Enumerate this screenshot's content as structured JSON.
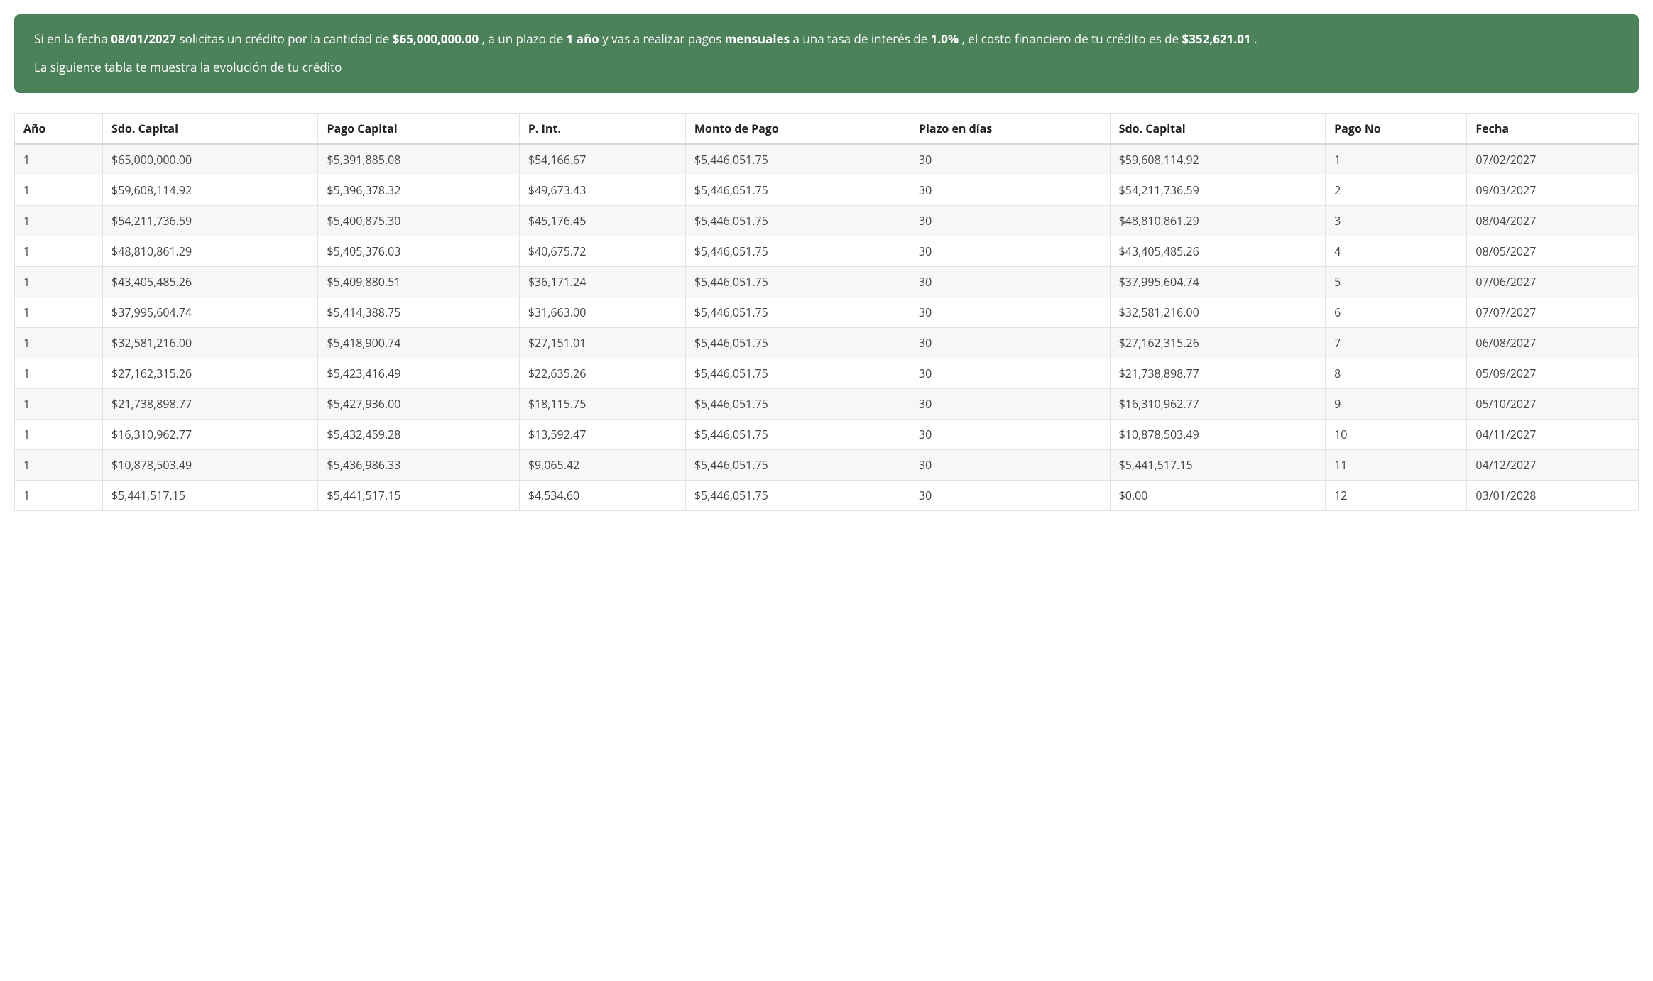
{
  "summary": {
    "text_pre_date": "Si en la fecha ",
    "date": "08/01/2027",
    "text_post_date": " solicitas un crédito por la cantidad de ",
    "amount": "$65,000,000.00",
    "text_post_amount": " , a un plazo de ",
    "term": "1 año",
    "text_post_term": " y vas a realizar pagos ",
    "frequency": "mensuales",
    "text_post_frequency": " a una tasa de interés de ",
    "rate": "1.0%",
    "text_post_rate": " , el costo financiero de tu crédito es de ",
    "cost": "$352,621.01",
    "text_post_cost": " .",
    "line2": "La siguiente tabla te muestra la evolución de tu crédito"
  },
  "table": {
    "headers": [
      "Año",
      "Sdo. Capital",
      "Pago Capital",
      "P. Int.",
      "Monto de Pago",
      "Plazo en días",
      "Sdo. Capital",
      "Pago No",
      "Fecha"
    ],
    "rows": [
      [
        "1",
        "$65,000,000.00",
        "$5,391,885.08",
        "$54,166.67",
        "$5,446,051.75",
        "30",
        "$59,608,114.92",
        "1",
        "07/02/2027"
      ],
      [
        "1",
        "$59,608,114.92",
        "$5,396,378.32",
        "$49,673.43",
        "$5,446,051.75",
        "30",
        "$54,211,736.59",
        "2",
        "09/03/2027"
      ],
      [
        "1",
        "$54,211,736.59",
        "$5,400,875.30",
        "$45,176.45",
        "$5,446,051.75",
        "30",
        "$48,810,861.29",
        "3",
        "08/04/2027"
      ],
      [
        "1",
        "$48,810,861.29",
        "$5,405,376.03",
        "$40,675.72",
        "$5,446,051.75",
        "30",
        "$43,405,485.26",
        "4",
        "08/05/2027"
      ],
      [
        "1",
        "$43,405,485.26",
        "$5,409,880.51",
        "$36,171.24",
        "$5,446,051.75",
        "30",
        "$37,995,604.74",
        "5",
        "07/06/2027"
      ],
      [
        "1",
        "$37,995,604.74",
        "$5,414,388.75",
        "$31,663.00",
        "$5,446,051.75",
        "30",
        "$32,581,216.00",
        "6",
        "07/07/2027"
      ],
      [
        "1",
        "$32,581,216.00",
        "$5,418,900.74",
        "$27,151.01",
        "$5,446,051.75",
        "30",
        "$27,162,315.26",
        "7",
        "06/08/2027"
      ],
      [
        "1",
        "$27,162,315.26",
        "$5,423,416.49",
        "$22,635.26",
        "$5,446,051.75",
        "30",
        "$21,738,898.77",
        "8",
        "05/09/2027"
      ],
      [
        "1",
        "$21,738,898.77",
        "$5,427,936.00",
        "$18,115.75",
        "$5,446,051.75",
        "30",
        "$16,310,962.77",
        "9",
        "05/10/2027"
      ],
      [
        "1",
        "$16,310,962.77",
        "$5,432,459.28",
        "$13,592.47",
        "$5,446,051.75",
        "30",
        "$10,878,503.49",
        "10",
        "04/11/2027"
      ],
      [
        "1",
        "$10,878,503.49",
        "$5,436,986.33",
        "$9,065.42",
        "$5,446,051.75",
        "30",
        "$5,441,517.15",
        "11",
        "04/12/2027"
      ],
      [
        "1",
        "$5,441,517.15",
        "$5,441,517.15",
        "$4,534.60",
        "$5,446,051.75",
        "30",
        "$0.00",
        "12",
        "03/01/2028"
      ]
    ]
  },
  "styling": {
    "summary_bg": "#4c8259",
    "summary_text": "#ffffff",
    "summary_radius": 8,
    "summary_fontsize": 17,
    "table_border": "#dddddd",
    "cell_border": "#e3e3e3",
    "header_underline": "#d8d8d8",
    "row_stripe_odd": "#f7f7f7",
    "row_stripe_even": "#ffffff",
    "text_color": "#444444",
    "header_text_color": "#222222",
    "table_fontsize": 16,
    "font_family": "Open Sans / system sans-serif"
  }
}
